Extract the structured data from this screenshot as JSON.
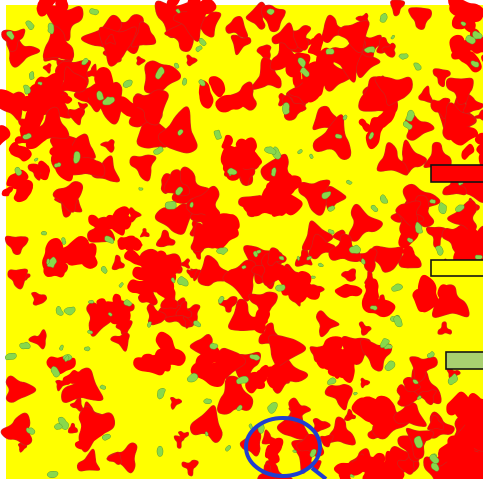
{
  "colors": {
    "page_background": "#ffffff",
    "field": "#ffff00",
    "patch": "#ff0000",
    "patch_outline": "#c8281e",
    "speck": "#88d84c",
    "speck_outline": "#5a9a30",
    "marker_outline": "#111111",
    "ring": "#1f3fd0"
  },
  "legend_swatches": [
    {
      "name": "red-swatch",
      "fill": "#ff0000"
    },
    {
      "name": "yellow-swatch",
      "fill": "#ffff00"
    },
    {
      "name": "green-swatch",
      "fill": "#a8d070"
    }
  ],
  "icons": {
    "ring": "circle-marker-icon"
  }
}
